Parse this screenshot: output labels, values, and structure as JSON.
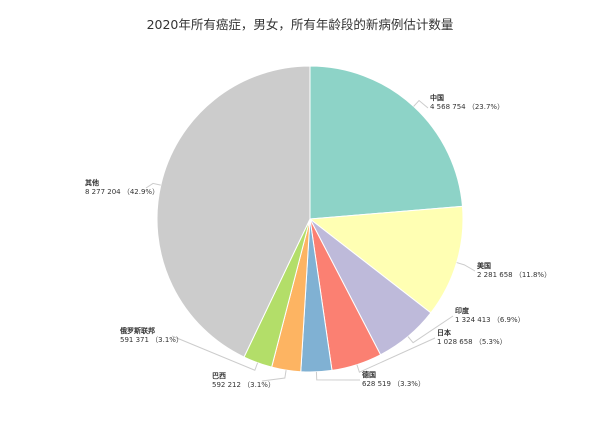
{
  "title": "2020年所有癌症，男女，所有年龄段的新病例估计数量",
  "chart_data": {
    "type": "pie",
    "title": "2020年所有癌症，男女，所有年龄段的新病例估计数量",
    "slices": [
      {
        "name": "中国",
        "value": 4568754,
        "value_label": "4 568 754",
        "percent_label": "（23.7%）",
        "color": "#8dd3c7"
      },
      {
        "name": "美国",
        "value": 2281658,
        "value_label": "2 281 658",
        "percent_label": "（11.8%）",
        "color": "#ffffb3"
      },
      {
        "name": "印度",
        "value": 1324413,
        "value_label": "1 324 413",
        "percent_label": "（6.9%）",
        "color": "#bebada"
      },
      {
        "name": "日本",
        "value": 1028658,
        "value_label": "1 028 658",
        "percent_label": "（5.3%）",
        "color": "#fb8072"
      },
      {
        "name": "德国",
        "value": 628519,
        "value_label": "628 519",
        "percent_label": "（3.3%）",
        "color": "#80b1d3"
      },
      {
        "name": "巴西",
        "value": 592212,
        "value_label": "592 212",
        "percent_label": "（3.1%）",
        "color": "#fdb462"
      },
      {
        "name": "俄罗斯联邦",
        "value": 591371,
        "value_label": "591 371",
        "percent_label": "（3.1%）",
        "color": "#b3de69"
      },
      {
        "name": "其他",
        "value": 8277204,
        "value_label": "8 277 204",
        "percent_label": "（42.9%）",
        "color": "#cccccc"
      }
    ]
  }
}
